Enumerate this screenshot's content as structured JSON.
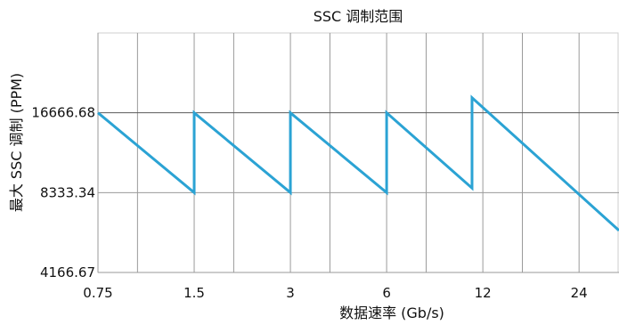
{
  "chart_data": {
    "type": "line",
    "title": "SSC 调制范围",
    "xlabel": "数据速率 (Gb/s)",
    "ylabel": "最大 SSC 调制 (PPM)",
    "x_scale": "log2",
    "y_scale": "log2",
    "xlim": [
      0.75,
      32
    ],
    "ylim": [
      4166.67,
      33333.36
    ],
    "x_ticks": [
      0.75,
      1.5,
      3,
      6,
      12,
      24
    ],
    "x_tick_labels": [
      "0.75",
      "1.5",
      "3",
      "6",
      "12",
      "24"
    ],
    "y_ticks": [
      4166.67,
      8333.34,
      16666.68
    ],
    "y_tick_labels": [
      "4166.67",
      "8333.34",
      "16666.68"
    ],
    "grid": true,
    "series": [
      {
        "color": "#2ba3d4",
        "points": [
          [
            0.75,
            16666.68
          ],
          [
            1.5,
            8333.34
          ],
          [
            1.5,
            16666.68
          ],
          [
            3,
            8333.34
          ],
          [
            3,
            16666.68
          ],
          [
            6,
            8333.34
          ],
          [
            6,
            16666.68
          ],
          [
            11.1,
            8670
          ],
          [
            11.1,
            19000
          ],
          [
            32,
            6000
          ]
        ]
      }
    ]
  }
}
